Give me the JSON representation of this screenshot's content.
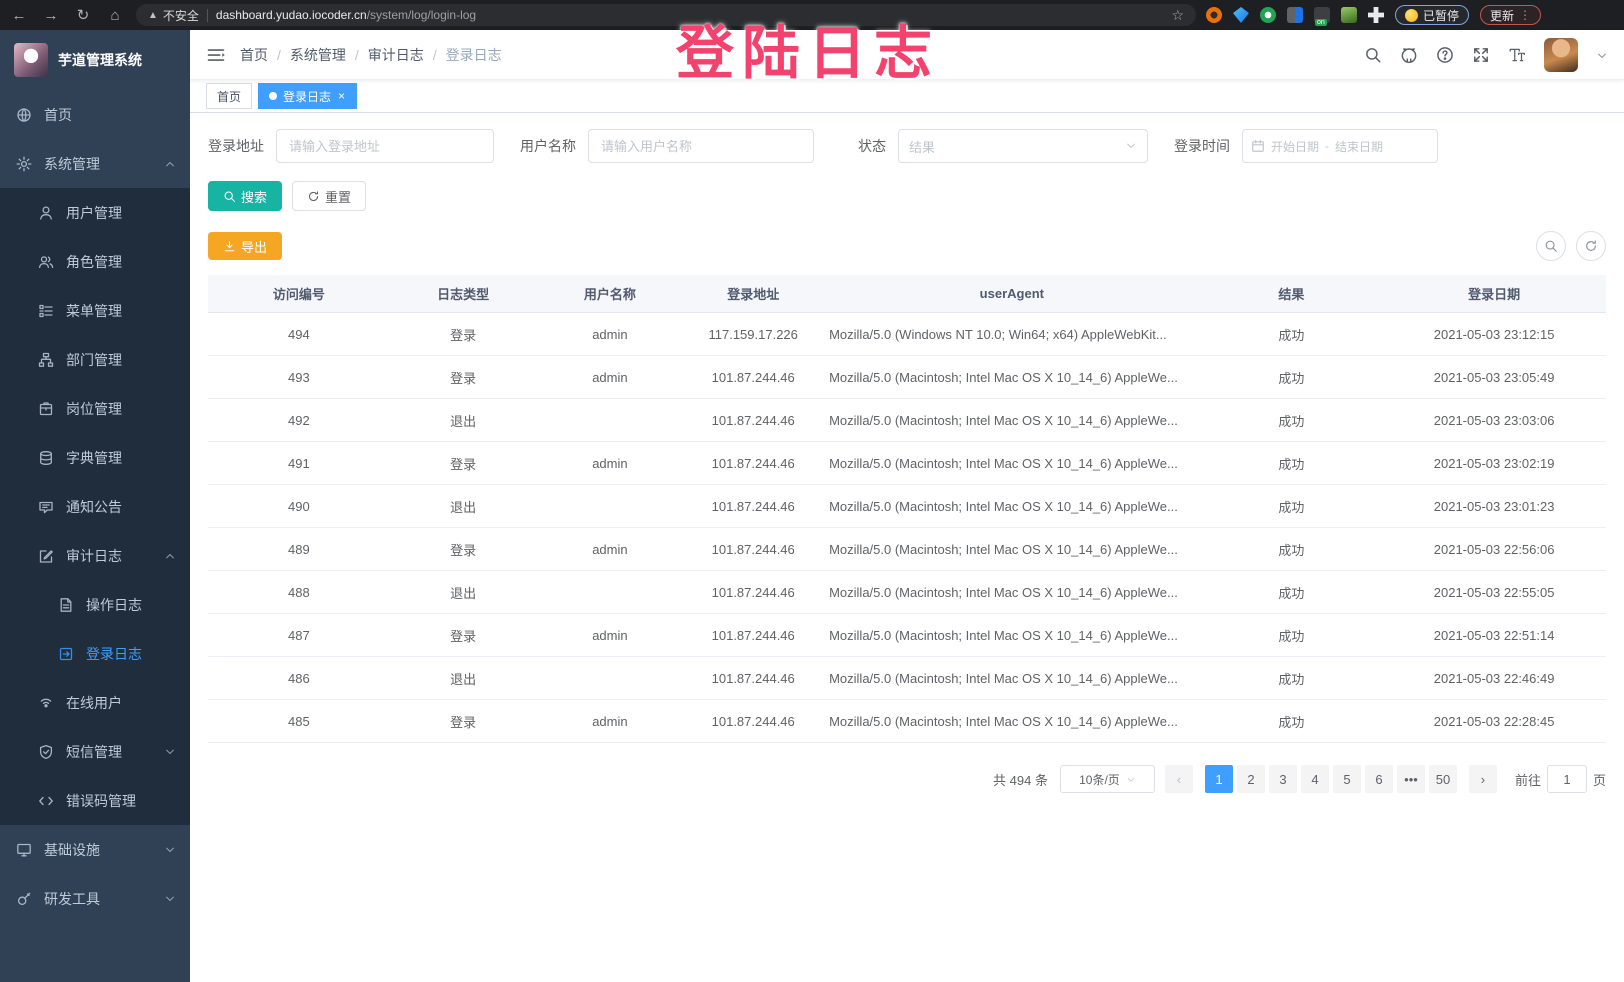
{
  "browser": {
    "security_label": "不安全",
    "url_host": "dashboard.yudao.iocoder.cn",
    "url_path": "/system/log/login-log",
    "paused_label": "已暂停",
    "update_label": "更新",
    "icons": [
      "back-arrow",
      "forward-arrow",
      "reload",
      "home",
      "bookmark-star",
      "extensions",
      "kebab-menu"
    ]
  },
  "watermark": "登陆日志",
  "sidebar": {
    "title": "芋道管理系统",
    "items": [
      {
        "label": "首页",
        "icon": "dashboard",
        "level": "top"
      },
      {
        "label": "系统管理",
        "icon": "gear",
        "level": "top",
        "arrow": "up"
      },
      {
        "label": "用户管理",
        "icon": "user",
        "level": "sub"
      },
      {
        "label": "角色管理",
        "icon": "users",
        "level": "sub"
      },
      {
        "label": "菜单管理",
        "icon": "menu",
        "level": "sub"
      },
      {
        "label": "部门管理",
        "icon": "org",
        "level": "sub"
      },
      {
        "label": "岗位管理",
        "icon": "badge",
        "level": "sub"
      },
      {
        "label": "字典管理",
        "icon": "book",
        "level": "sub"
      },
      {
        "label": "通知公告",
        "icon": "announce",
        "level": "sub"
      },
      {
        "label": "审计日志",
        "icon": "audit",
        "level": "sub",
        "arrow": "up"
      },
      {
        "label": "操作日志",
        "icon": "doc",
        "level": "sub2"
      },
      {
        "label": "登录日志",
        "icon": "login",
        "level": "sub2",
        "active": true
      },
      {
        "label": "在线用户",
        "icon": "online",
        "level": "sub"
      },
      {
        "label": "短信管理",
        "icon": "sms",
        "level": "sub",
        "arrow": "down"
      },
      {
        "label": "错误码管理",
        "icon": "code",
        "level": "sub"
      },
      {
        "label": "基础设施",
        "icon": "infra",
        "level": "top",
        "arrow": "down"
      },
      {
        "label": "研发工具",
        "icon": "tools",
        "level": "top",
        "arrow": "down"
      }
    ]
  },
  "navbar": {
    "breadcrumb": [
      "首页",
      "系统管理",
      "审计日志",
      "登录日志"
    ],
    "right_icons": [
      "search-icon",
      "github-icon",
      "help-icon",
      "fullscreen-icon",
      "font-size-icon",
      "avatar",
      "caret-down-icon"
    ]
  },
  "tabs": [
    {
      "label": "首页",
      "active": false
    },
    {
      "label": "登录日志",
      "active": true,
      "closable": true
    }
  ],
  "filters": {
    "address_label": "登录地址",
    "address_placeholder": "请输入登录地址",
    "username_label": "用户名称",
    "username_placeholder": "请输入用户名称",
    "status_label": "状态",
    "status_placeholder": "结果",
    "time_label": "登录时间",
    "start_placeholder": "开始日期",
    "range_separator": "-",
    "end_placeholder": "结束日期",
    "search_label": "搜索",
    "reset_label": "重置"
  },
  "toolbar": {
    "export_label": "导出",
    "mini_buttons": [
      "search-toggle-icon",
      "refresh-icon"
    ]
  },
  "table": {
    "headers": [
      "访问编号",
      "日志类型",
      "用户名称",
      "登录地址",
      "userAgent",
      "结果",
      "登录日期"
    ],
    "rows": [
      [
        "494",
        "登录",
        "admin",
        "117.159.17.226",
        "Mozilla/5.0 (Windows NT 10.0; Win64; x64) AppleWebKit...",
        "成功",
        "2021-05-03 23:12:15"
      ],
      [
        "493",
        "登录",
        "admin",
        "101.87.244.46",
        "Mozilla/5.0 (Macintosh; Intel Mac OS X 10_14_6) AppleWe...",
        "成功",
        "2021-05-03 23:05:49"
      ],
      [
        "492",
        "退出",
        "",
        "101.87.244.46",
        "Mozilla/5.0 (Macintosh; Intel Mac OS X 10_14_6) AppleWe...",
        "成功",
        "2021-05-03 23:03:06"
      ],
      [
        "491",
        "登录",
        "admin",
        "101.87.244.46",
        "Mozilla/5.0 (Macintosh; Intel Mac OS X 10_14_6) AppleWe...",
        "成功",
        "2021-05-03 23:02:19"
      ],
      [
        "490",
        "退出",
        "",
        "101.87.244.46",
        "Mozilla/5.0 (Macintosh; Intel Mac OS X 10_14_6) AppleWe...",
        "成功",
        "2021-05-03 23:01:23"
      ],
      [
        "489",
        "登录",
        "admin",
        "101.87.244.46",
        "Mozilla/5.0 (Macintosh; Intel Mac OS X 10_14_6) AppleWe...",
        "成功",
        "2021-05-03 22:56:06"
      ],
      [
        "488",
        "退出",
        "",
        "101.87.244.46",
        "Mozilla/5.0 (Macintosh; Intel Mac OS X 10_14_6) AppleWe...",
        "成功",
        "2021-05-03 22:55:05"
      ],
      [
        "487",
        "登录",
        "admin",
        "101.87.244.46",
        "Mozilla/5.0 (Macintosh; Intel Mac OS X 10_14_6) AppleWe...",
        "成功",
        "2021-05-03 22:51:14"
      ],
      [
        "486",
        "退出",
        "",
        "101.87.244.46",
        "Mozilla/5.0 (Macintosh; Intel Mac OS X 10_14_6) AppleWe...",
        "成功",
        "2021-05-03 22:46:49"
      ],
      [
        "485",
        "登录",
        "admin",
        "101.87.244.46",
        "Mozilla/5.0 (Macintosh; Intel Mac OS X 10_14_6) AppleWe...",
        "成功",
        "2021-05-03 22:28:45"
      ]
    ]
  },
  "pagination": {
    "total_label": "共 494 条",
    "page_size_label": "10条/页",
    "prev_glyph": "‹",
    "next_glyph": "›",
    "pages": [
      "1",
      "2",
      "3",
      "4",
      "5",
      "6",
      "•••",
      "50"
    ],
    "active_page": "1",
    "goto_label": "前往",
    "goto_value": "1",
    "goto_unit": "页"
  },
  "colors": {
    "accent_blue": "#409eff",
    "sidebar_bg": "#304156",
    "submenu_bg": "#1f2d3d",
    "search_button": "#17b3a3",
    "export_button": "#f5a623",
    "watermark_pink": "#f4426e"
  }
}
